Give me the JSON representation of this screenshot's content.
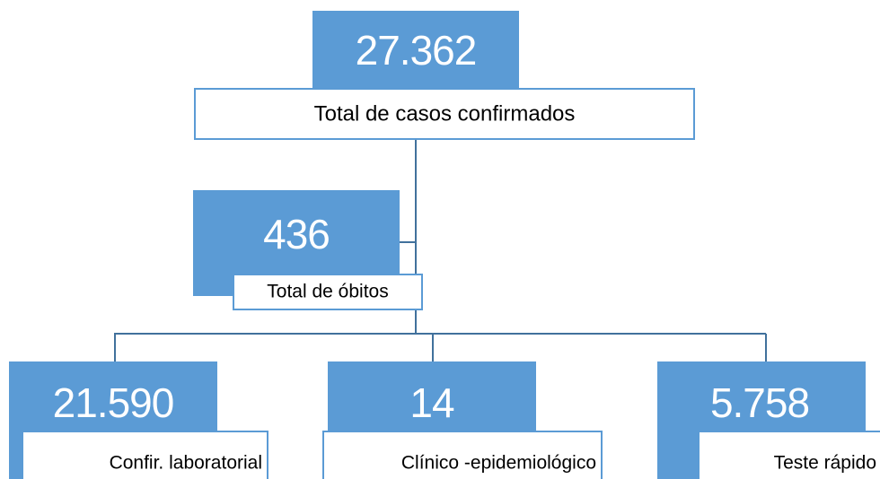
{
  "nodes": [
    {
      "value": "27.362",
      "label": "Total de casos confirmados"
    },
    {
      "value": "436",
      "label": "Total de óbitos"
    },
    {
      "value": "21.590",
      "label": "Confir. laboratorial"
    },
    {
      "value": "14",
      "label": "Clínico -epidemiológico"
    },
    {
      "value": "5.758",
      "label": "Teste rápido"
    }
  ]
}
